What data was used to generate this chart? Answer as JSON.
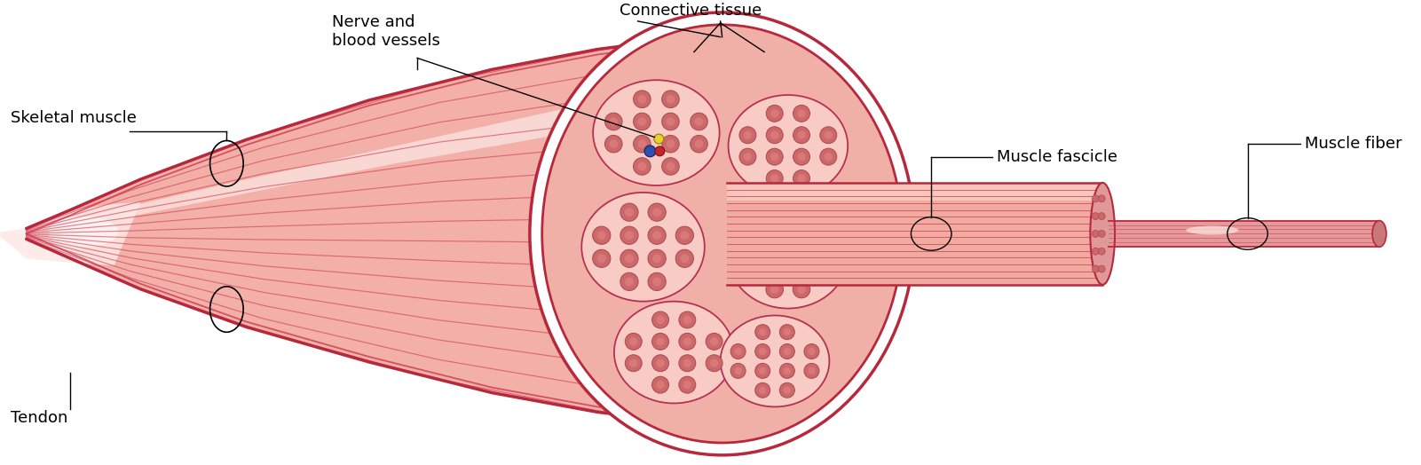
{
  "bg_color": "#ffffff",
  "muscle_fill": "#f2b0a8",
  "muscle_dark": "#b8283c",
  "muscle_mid": "#e08880",
  "muscle_light": "#fad8d0",
  "muscle_stripe": "#cc3850",
  "fascicle_fill": "#f5c0b8",
  "fascicle_dark": "#b83050",
  "fiber_fill": "#e89890",
  "circle_fill": "#cc6868",
  "circle_inner": "#d87878",
  "circle_stroke": "#a84858",
  "connective_fill": "#f0b0a8",
  "connective_bg": "#fcd8d0",
  "white": "#ffffff",
  "nerve_yellow": "#e8d030",
  "nerve_blue": "#3050b0",
  "nerve_red": "#c02828",
  "label_color": "#000000",
  "line_color": "#000000",
  "labels": {
    "skeletal_muscle": "Skeletal muscle",
    "tendon": "Tendon",
    "nerve_blood": "Nerve and\nblood vessels",
    "connective": "Connective tissue",
    "muscle_fascicle": "Muscle fascicle",
    "muscle_fiber": "Muscle fiber"
  },
  "figsize": [
    16.01,
    5.24
  ],
  "dpi": 100
}
